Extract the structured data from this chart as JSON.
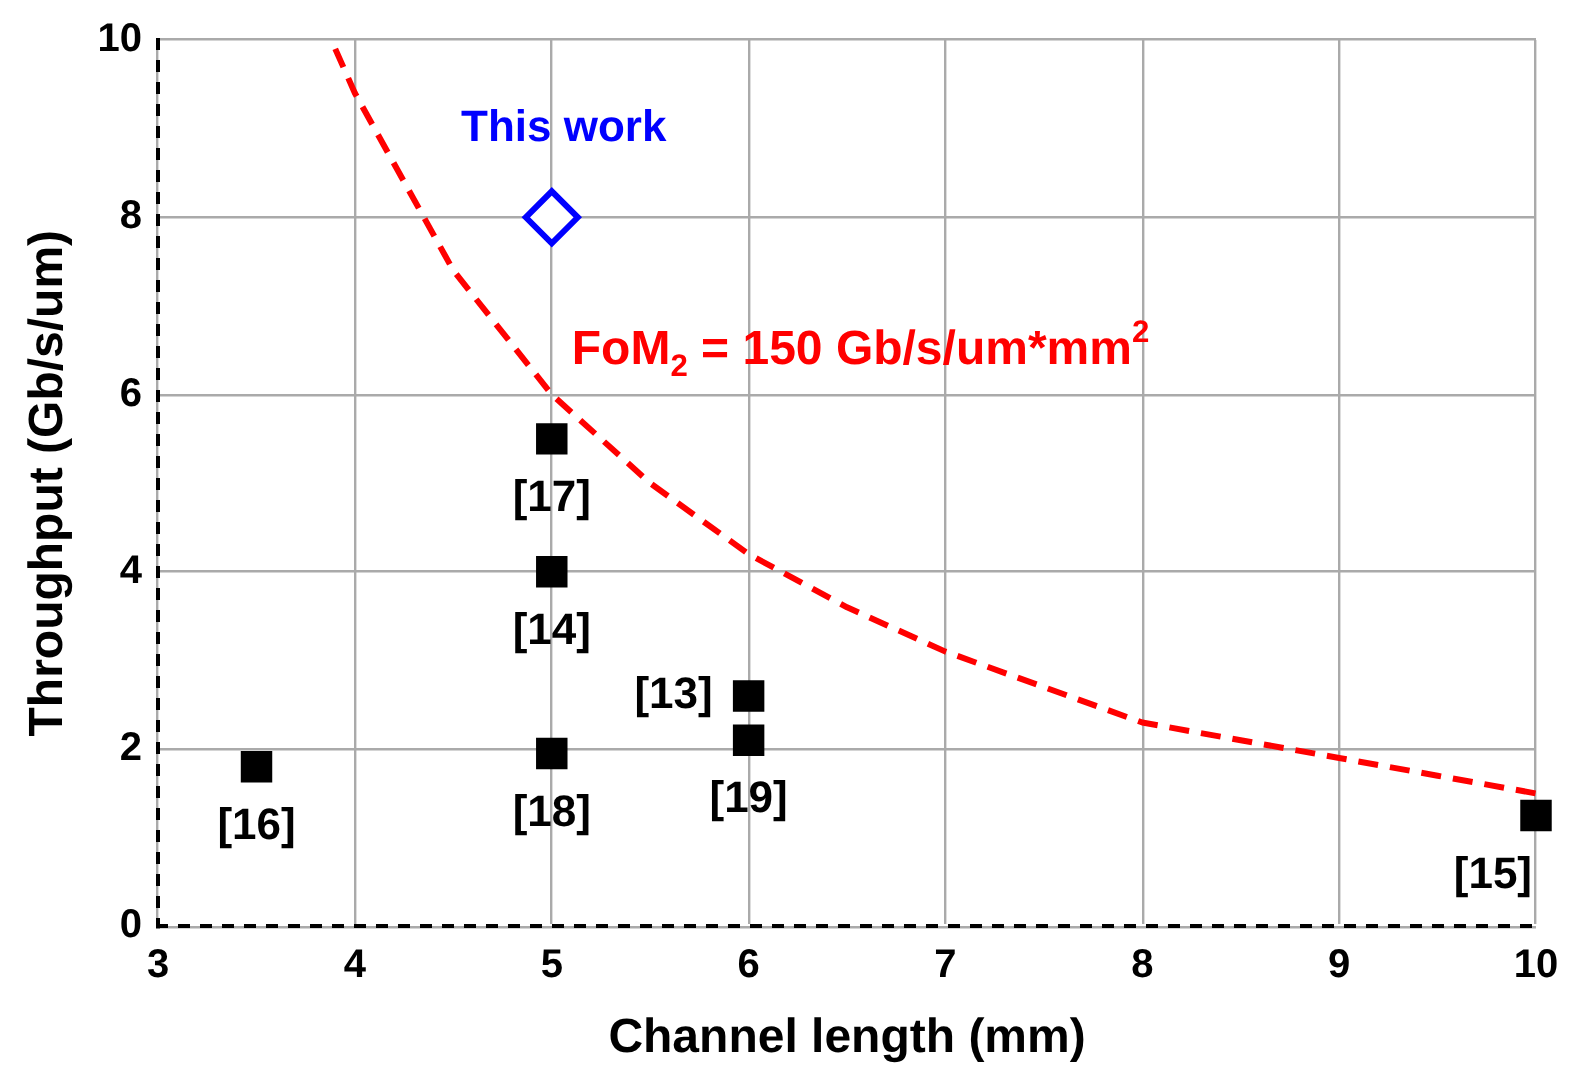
{
  "chart_data": {
    "type": "scatter",
    "xlabel": "Channel length (mm)",
    "ylabel": "Throughput (Gb/s/um)",
    "xlim": [
      3,
      10
    ],
    "xticks": [
      3,
      4,
      5,
      6,
      7,
      8,
      9,
      10
    ],
    "ylim": [
      0,
      10
    ],
    "yticks": [
      0,
      2,
      4,
      6,
      8,
      10
    ],
    "grid": true,
    "legend": false,
    "series": [
      {
        "type": "line",
        "name": "FoM$_{2}$ = 150 Gb/s/um*mm$^{2}$",
        "color": "#ff0000",
        "marker": "none",
        "line_style": "dashed",
        "x": [
          3.9,
          4,
          4.5,
          5,
          5.5,
          6,
          6.5,
          7,
          7.5,
          8,
          8.5,
          9,
          9.5,
          10
        ],
        "values": [
          9.9,
          9.4,
          7.4,
          6.0,
          5.0,
          4.2,
          3.6,
          3.1,
          2.7,
          2.3,
          2.1,
          1.9,
          1.7,
          1.5
        ]
      },
      {
        "color": "#000000",
        "marker": "square",
        "x": [
          3.5,
          5,
          5,
          5,
          6,
          6,
          10
        ],
        "values": [
          1.8,
          1.95,
          4.0,
          5.5,
          2.6,
          2.1,
          1.25
        ]
      },
      {
        "name": "This work",
        "color": "#0000ff",
        "marker": "diamond",
        "x": [
          5
        ],
        "values": [
          8.0
        ]
      }
    ],
    "annotations": [
      {
        "text": "[16]",
        "x": 3.5,
        "y": 1.8
      },
      {
        "text": "[18]",
        "x": 5,
        "y": 1.95
      },
      {
        "text": "[14]",
        "x": 5,
        "y": 4.0
      },
      {
        "text": "[17]",
        "x": 5,
        "y": 5.5
      },
      {
        "text": "[13]",
        "x": 6,
        "y": 2.6
      },
      {
        "text": "[19]",
        "x": 6,
        "y": 2.1
      },
      {
        "text": "[15]",
        "x": 10,
        "y": 1.25
      }
    ]
  }
}
